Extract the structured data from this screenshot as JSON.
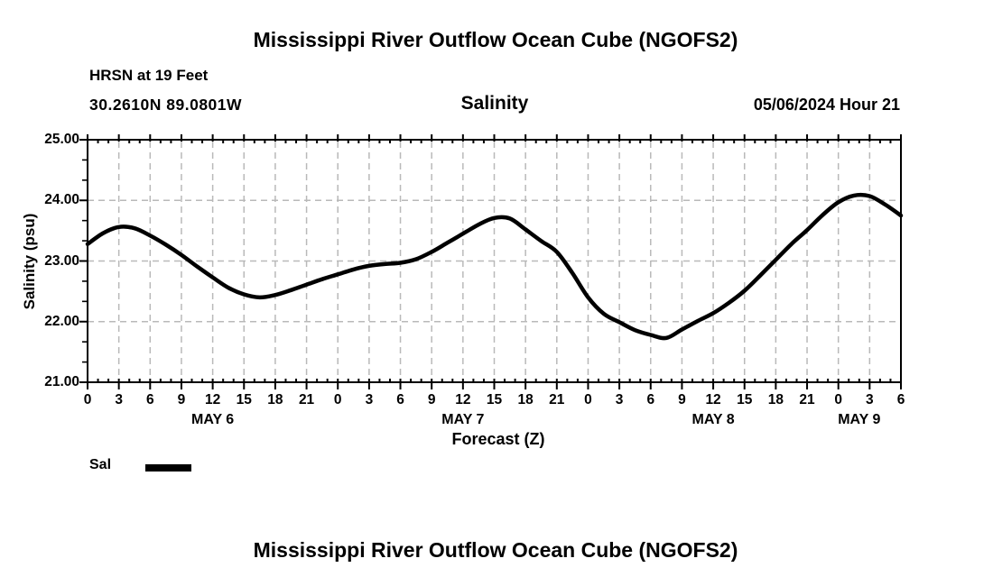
{
  "titles": {
    "top": "Mississippi River Outflow Ocean Cube (NGOFS2)",
    "bottom": "Mississippi River Outflow Ocean Cube (NGOFS2)"
  },
  "header": {
    "station": "HRSN at 19 Feet",
    "coordinates": "30.2610N  89.0801W",
    "parameter": "Salinity",
    "datetime": "05/06/2024 Hour 21"
  },
  "legend": {
    "label": "Sal",
    "swatch_color": "#000000"
  },
  "chart_data": {
    "type": "line",
    "title": "Salinity",
    "xlabel": "Forecast (Z)",
    "ylabel": "Salinity (psu)",
    "x_hours_range": [
      0,
      78
    ],
    "x_tick_hours": [
      0,
      3,
      6,
      9,
      12,
      15,
      18,
      21,
      24,
      27,
      30,
      33,
      36,
      39,
      42,
      45,
      48,
      51,
      54,
      57,
      60,
      63,
      66,
      69,
      72,
      75,
      78
    ],
    "x_tick_labels": [
      "0",
      "3",
      "6",
      "9",
      "12",
      "15",
      "18",
      "21",
      "0",
      "3",
      "6",
      "9",
      "12",
      "15",
      "18",
      "21",
      "0",
      "3",
      "6",
      "9",
      "12",
      "15",
      "18",
      "21",
      "0",
      "3",
      "6"
    ],
    "x_minor_tick_step_hours": 1,
    "day_labels": [
      {
        "label": "MAY 6",
        "hour": 12
      },
      {
        "label": "MAY 7",
        "hour": 36
      },
      {
        "label": "MAY 8",
        "hour": 60
      },
      {
        "label": "MAY 9",
        "hour": 74
      }
    ],
    "ylim": [
      21.0,
      25.0
    ],
    "y_ticks": [
      21,
      22,
      23,
      24,
      25
    ],
    "y_tick_labels": [
      "21.00",
      "22.00",
      "23.00",
      "24.00",
      "25.00"
    ],
    "y_minor_divisions_per_unit": 3,
    "grid": {
      "vertical_every_hours": 3,
      "horizontal_values": [
        22,
        23,
        24
      ],
      "color": "#b9b9b9",
      "dash": "7 5"
    },
    "series": [
      {
        "name": "Sal",
        "color": "#000000",
        "width": 4.5,
        "x_hours": [
          0,
          1.5,
          3,
          4.5,
          6,
          7.5,
          9,
          10.5,
          12,
          13.5,
          15,
          16.5,
          18,
          19.5,
          21,
          22.5,
          24,
          25.5,
          27,
          28.5,
          30,
          31.5,
          33,
          34.5,
          36,
          37.5,
          39,
          40.5,
          42,
          43.5,
          45,
          46.5,
          48,
          49.5,
          51,
          52.5,
          54,
          55.5,
          57,
          58.5,
          60,
          61.5,
          63,
          64.5,
          66,
          67.5,
          69,
          70.5,
          72,
          73.5,
          75,
          76.5,
          78
        ],
        "values": [
          23.28,
          23.46,
          23.56,
          23.54,
          23.42,
          23.27,
          23.1,
          22.91,
          22.73,
          22.56,
          22.45,
          22.4,
          22.44,
          22.52,
          22.61,
          22.7,
          22.78,
          22.86,
          22.92,
          22.95,
          22.97,
          23.03,
          23.15,
          23.3,
          23.45,
          23.6,
          23.71,
          23.7,
          23.52,
          23.33,
          23.15,
          22.8,
          22.4,
          22.13,
          21.99,
          21.86,
          21.78,
          21.73,
          21.87,
          22.01,
          22.14,
          22.31,
          22.51,
          22.76,
          23.02,
          23.28,
          23.51,
          23.76,
          23.97,
          24.08,
          24.07,
          23.93,
          23.75
        ]
      }
    ]
  }
}
